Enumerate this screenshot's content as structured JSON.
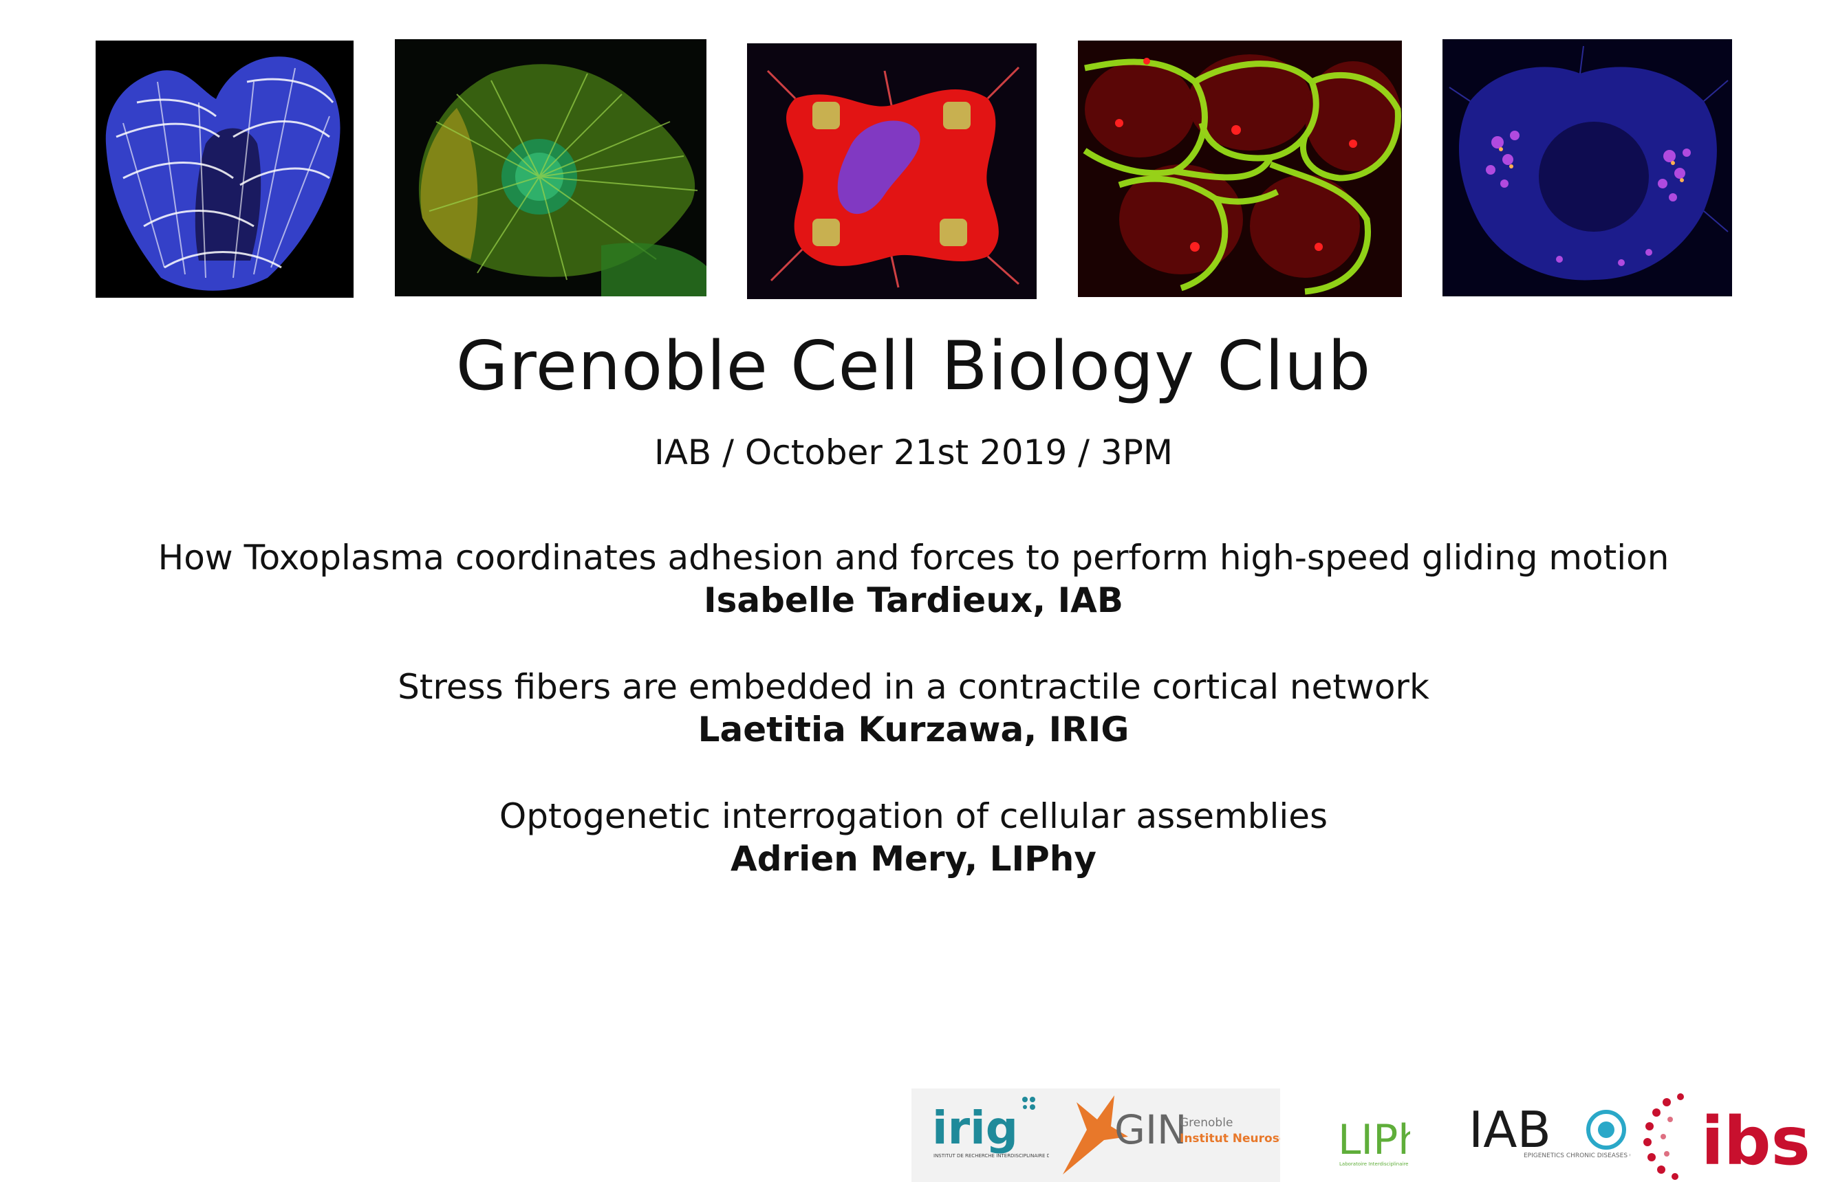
{
  "header": {
    "title": "Grenoble Cell Biology Club",
    "subtitle": "IAB / October 21st 2019 / 3PM"
  },
  "talks": [
    {
      "title": "How Toxoplasma coordinates adhesion and forces to perform high-speed gliding motion",
      "speaker": "Isabelle Tardieux, IAB"
    },
    {
      "title": "Stress fibers are embedded in a contractile cortical network",
      "speaker": "Laetitia Kurzawa, IRIG"
    },
    {
      "title": "Optogenetic interrogation of cellular assemblies",
      "speaker": "Adrien Mery, LIPhy"
    }
  ],
  "logos": {
    "irig": {
      "name": "irig",
      "caption": "INSTITUT DE RECHERCHE INTERDISCIPLINAIRE DE GRENOBLE"
    },
    "gin": {
      "name": "GIN",
      "line1": "Grenoble",
      "line2": "Institut Neurosciences"
    },
    "liphy": {
      "name": "LIPhy",
      "caption": "Laboratoire Interdisciplinaire de Physique"
    },
    "iab": {
      "name": "IAB",
      "caption": "EPIGENETICS CHRONIC DISEASES CANCER"
    },
    "ibs": {
      "name": "ibs"
    }
  },
  "colors": {
    "background": "#ffffff",
    "text": "#111111",
    "irig_teal": "#1f8a9a",
    "gin_orange": "#e8782a",
    "liphy_green": "#5fae3a",
    "ibs_red": "#c8102e"
  }
}
